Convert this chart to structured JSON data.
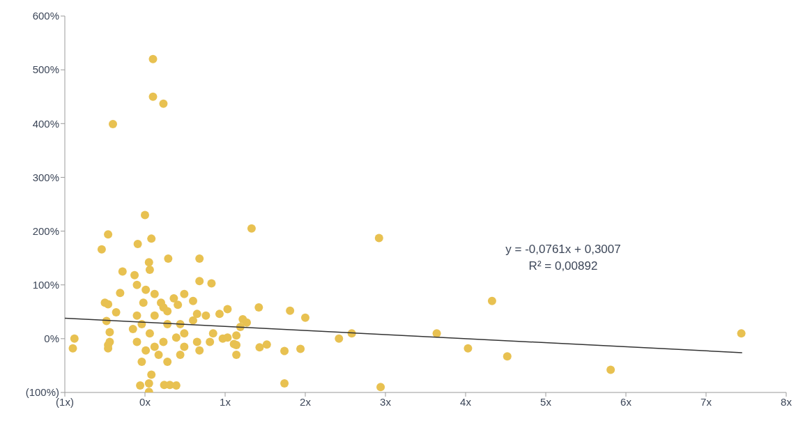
{
  "chart_data": {
    "type": "scatter",
    "xlim": [
      -1,
      8
    ],
    "ylim": [
      -100,
      600
    ],
    "xticks": [
      {
        "value": -1,
        "label": "(1x)"
      },
      {
        "value": 0,
        "label": "0x"
      },
      {
        "value": 1,
        "label": "1x"
      },
      {
        "value": 2,
        "label": "2x"
      },
      {
        "value": 3,
        "label": "3x"
      },
      {
        "value": 4,
        "label": "4x"
      },
      {
        "value": 5,
        "label": "5x"
      },
      {
        "value": 6,
        "label": "6x"
      },
      {
        "value": 7,
        "label": "7x"
      },
      {
        "value": 8,
        "label": "8x"
      }
    ],
    "yticks": [
      {
        "value": -100,
        "label": "(100%)"
      },
      {
        "value": 0,
        "label": "0%"
      },
      {
        "value": 100,
        "label": "100%"
      },
      {
        "value": 200,
        "label": "200%"
      },
      {
        "value": 300,
        "label": "300%"
      },
      {
        "value": 400,
        "label": "400%"
      },
      {
        "value": 500,
        "label": "500%"
      },
      {
        "value": 600,
        "label": "600%"
      }
    ],
    "grid": false,
    "legend": false,
    "annotations": [
      "y = -0,0761x + 0,3007",
      "R² = 0,00892"
    ],
    "series": [
      {
        "marker": "circle",
        "color": "#e8c151",
        "x": [
          0.1,
          0.1,
          0.23,
          -0.4,
          0,
          0.08,
          -0.09,
          -0.54,
          -0.46,
          1.33,
          2.92,
          0.05,
          0.29,
          0.68,
          0.68,
          0.83,
          -0.28,
          -0.13,
          0.06,
          -0.31,
          -0.46,
          -0.36,
          -0.48,
          -0.88,
          -0.9,
          -0.46,
          -0.44,
          1.03,
          1.42,
          1.81,
          2.0,
          2.42,
          2.58,
          3.64,
          4.03,
          4.33,
          4.52,
          5.81,
          7.44,
          2.94,
          1.74,
          1.74,
          1.94,
          1.52,
          1.43,
          1.14,
          1.14,
          0.97,
          1.27,
          1.19,
          0.05,
          -0.06,
          0.05,
          0.24,
          0.31,
          0.39,
          0.08,
          -0.1,
          0.49,
          0.6,
          0.36,
          1.22,
          0.65,
          0.76,
          0.93,
          0.12,
          0.2,
          -0.02,
          -0.1,
          0.28,
          0.41,
          1.14,
          1.03,
          0.85,
          0.65,
          0.49,
          0.68,
          0.44,
          0.28,
          0.17,
          -0.04,
          0.01,
          0.06,
          -0.15,
          0.28,
          0.44,
          0.6,
          -0.1,
          0.23,
          0.39,
          0.12,
          -0.04,
          0.12,
          0.23,
          0.01,
          0.49,
          0.81,
          1.11,
          -0.44,
          -0.46,
          -0.5
        ],
        "values": [
          520,
          450,
          437,
          399,
          230,
          186,
          176,
          166,
          194,
          205,
          187,
          142,
          149,
          149,
          107,
          103,
          125,
          118,
          128,
          85,
          64,
          49,
          33,
          0,
          -18,
          -12,
          12,
          55,
          58,
          52,
          39,
          0,
          10,
          10,
          -18,
          70,
          -33,
          -58,
          10,
          -90,
          -83,
          -23,
          -19,
          -11,
          -16,
          -30,
          -12,
          0,
          30,
          22,
          -83,
          -87,
          -99,
          -86,
          -86,
          -87,
          -67,
          100,
          83,
          70,
          75,
          36,
          46,
          43,
          46,
          83,
          67,
          67,
          43,
          51,
          63,
          6,
          2,
          10,
          -6,
          -15,
          -22,
          -30,
          -43,
          -30,
          -43,
          -22,
          10,
          18,
          27,
          27,
          34,
          -6,
          -6,
          2,
          -15,
          27,
          43,
          58,
          91,
          10,
          -6,
          -10,
          -6,
          -18,
          67
        ]
      },
      {
        "type": "line",
        "marker": "none",
        "color": "#333333",
        "x": [
          -1,
          7.45
        ],
        "values": [
          38,
          -26
        ]
      }
    ]
  }
}
